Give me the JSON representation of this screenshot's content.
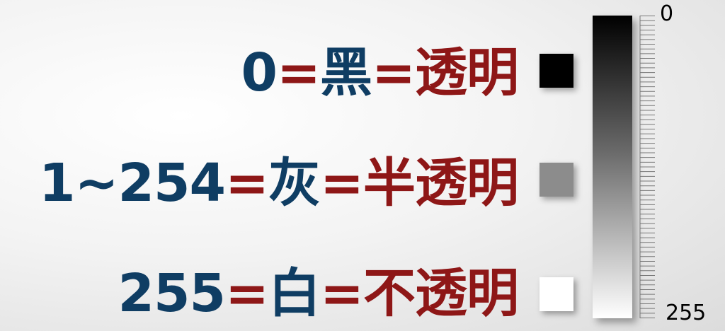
{
  "rows": [
    {
      "number": "0",
      "eq1": "=",
      "value": "黑",
      "eq2": "=",
      "result": "透明",
      "swatch_color": "#000000"
    },
    {
      "number": "1~254",
      "eq1": "=",
      "value": "灰",
      "eq2": "=",
      "result": "半透明",
      "swatch_color": "#8c8c8c"
    },
    {
      "number": "255",
      "eq1": "=",
      "value": "白",
      "eq2": "=",
      "result": "不透明",
      "swatch_color": "#ffffff"
    }
  ],
  "gradient_bar": {
    "top_color": "#000000",
    "bottom_color": "#ffffff"
  },
  "scale": {
    "top_label": "0",
    "bottom_label": "255",
    "tick_count": 64
  },
  "colors": {
    "number_blue": "#0f3d63",
    "equals_red": "#8e1717"
  }
}
